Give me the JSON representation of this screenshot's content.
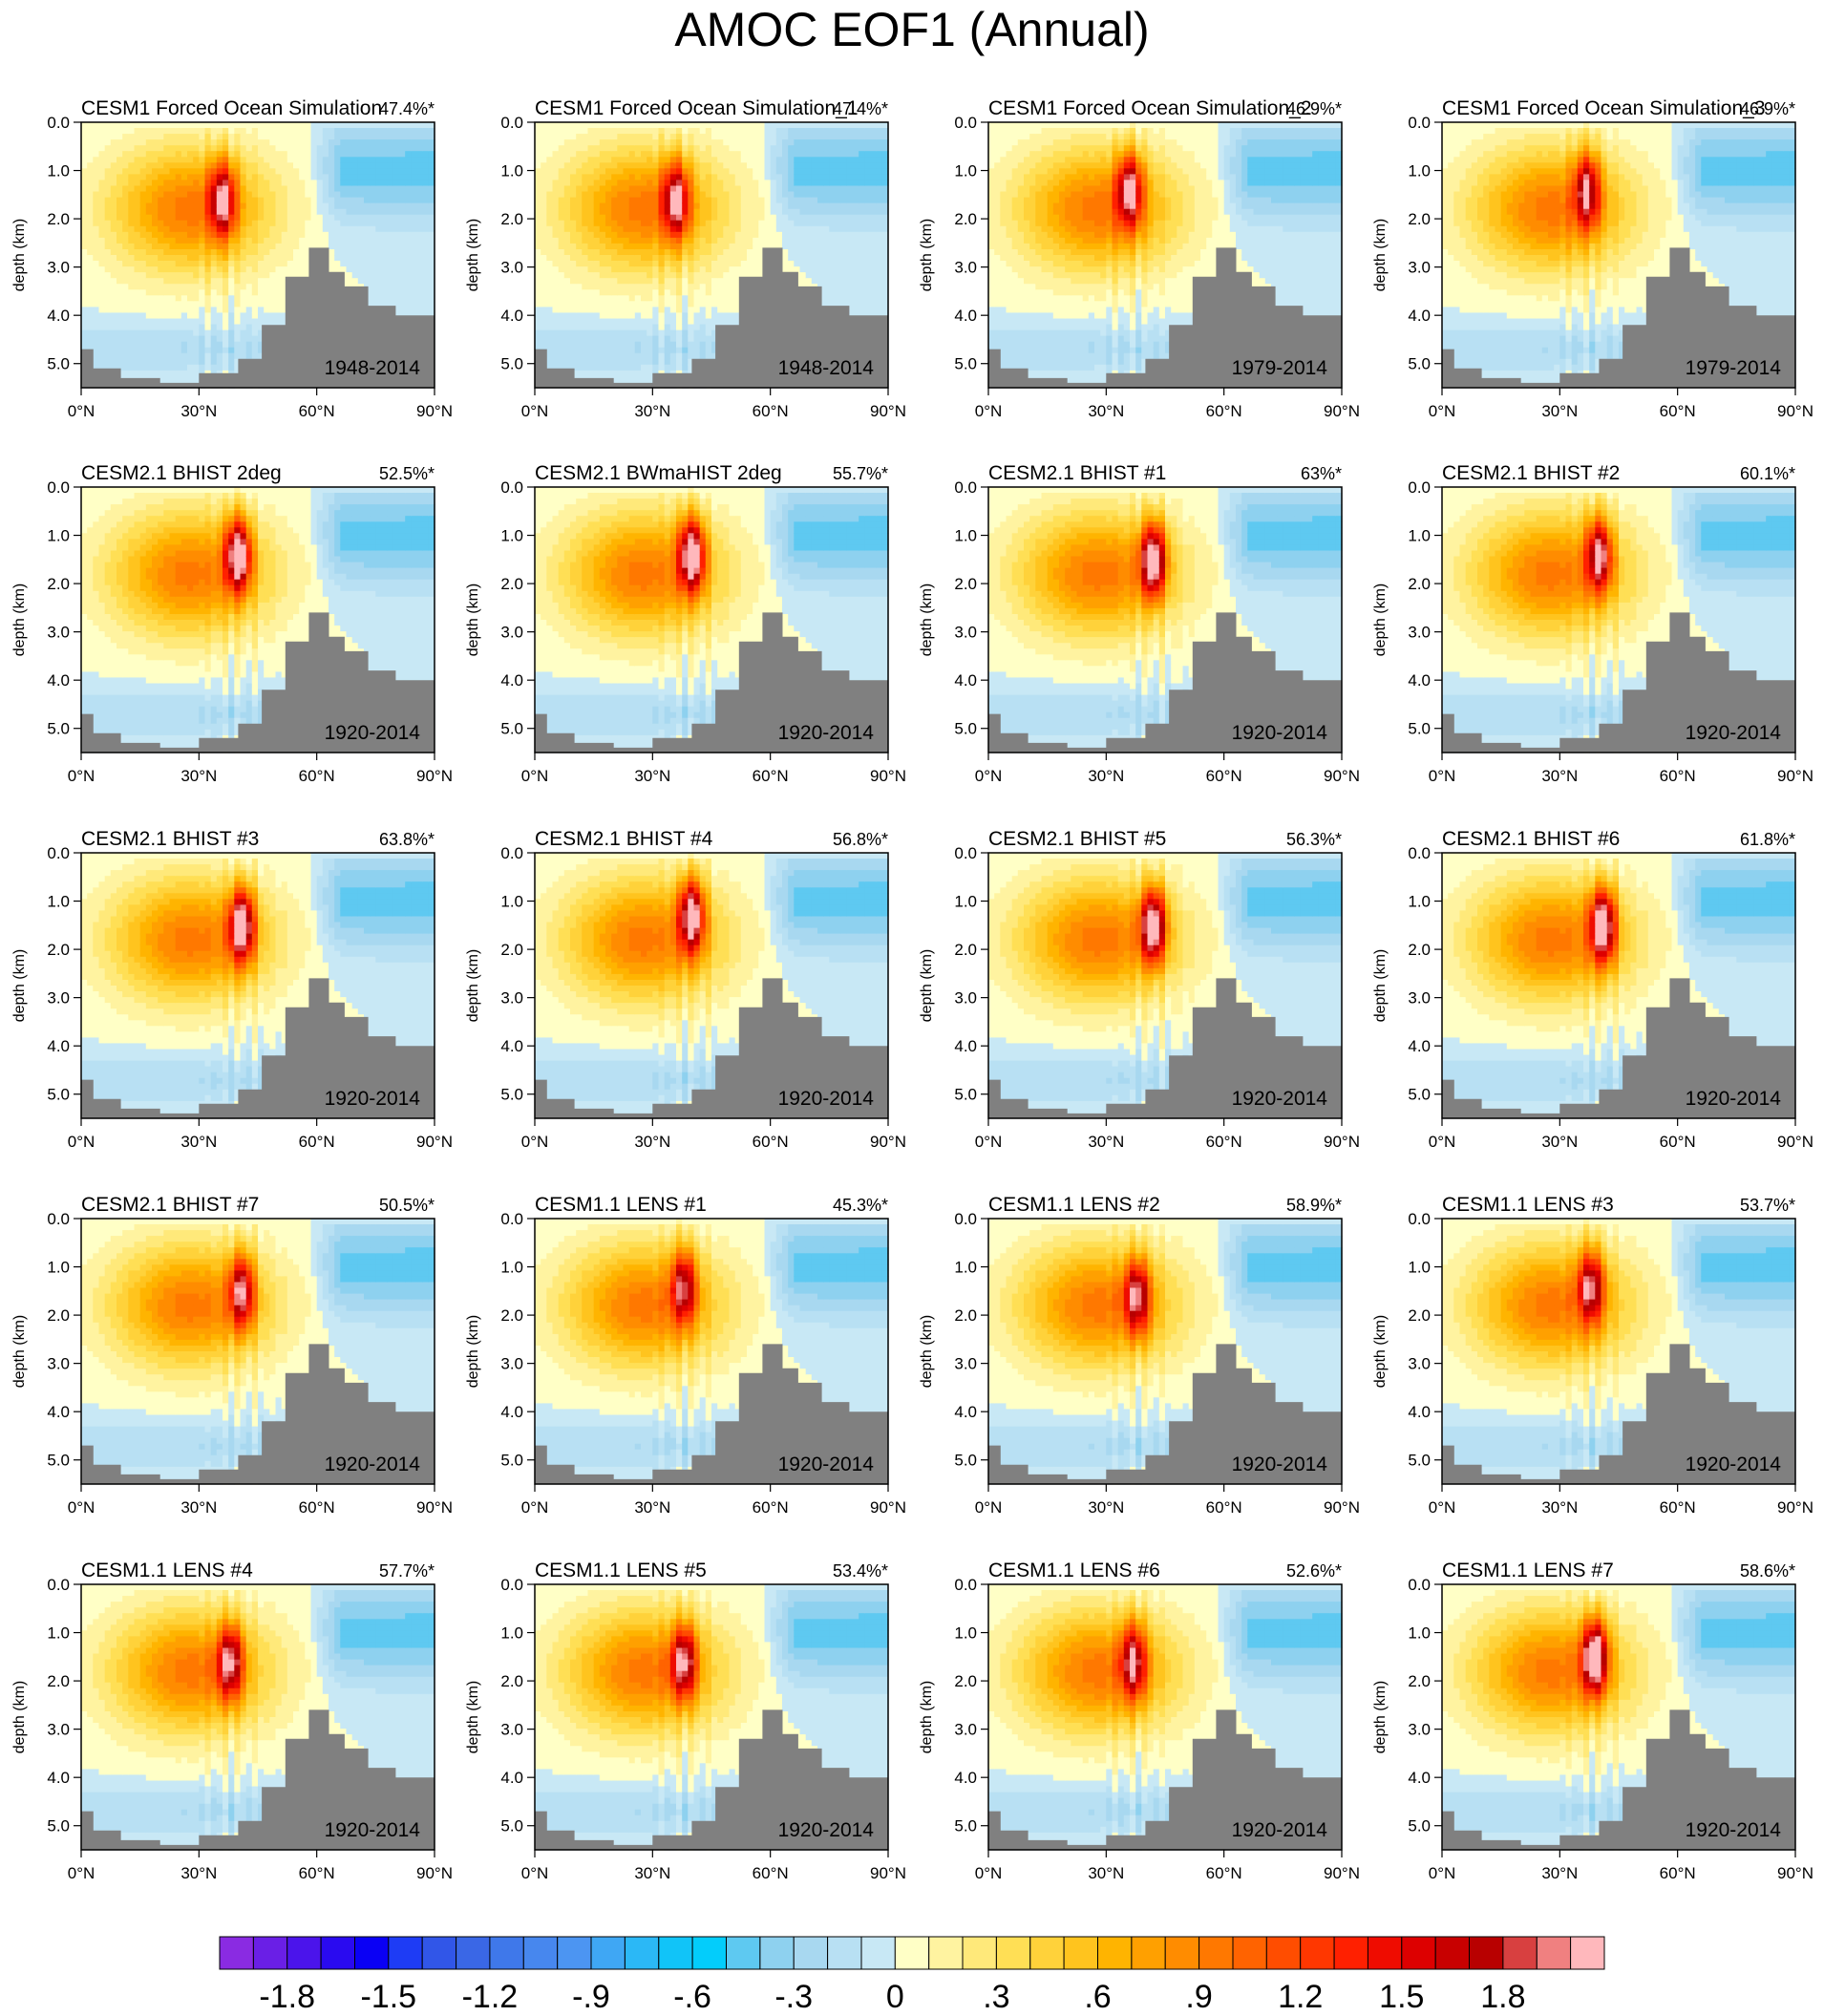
{
  "title": "AMOC EOF1 (Annual)",
  "axes": {
    "ylabel": "depth (km)",
    "y_ticks": [
      "0.0",
      "1.0",
      "2.0",
      "3.0",
      "4.0",
      "5.0"
    ],
    "x_ticks": [
      "0°N",
      "30°N",
      "60°N",
      "90°N"
    ],
    "xlim": [
      0,
      90
    ],
    "ylim": [
      5.5,
      0
    ]
  },
  "chart_data": {
    "type": "heatmap",
    "title": "AMOC EOF1 (Annual)",
    "ylabel": "depth (km)",
    "panels": [
      {
        "name": "CESM1 Forced Ocean Simulation",
        "pct": "47.4%*",
        "period": "1948-2014",
        "max": 1.45,
        "cx": 36,
        "cz": 1.6
      },
      {
        "name": "CESM1 Forced Ocean Simulation_1",
        "pct": "47.4%*",
        "period": "1948-2014",
        "max": 1.45,
        "cx": 36,
        "cz": 1.6
      },
      {
        "name": "CESM1 Forced Ocean Simulation_2",
        "pct": "46.9%*",
        "period": "1979-2014",
        "max": 1.5,
        "cx": 36,
        "cz": 1.4
      },
      {
        "name": "CESM1 Forced Ocean Simulation_3",
        "pct": "46.9%*",
        "period": "1979-2014",
        "max": 1.45,
        "cx": 37,
        "cz": 1.4
      },
      {
        "name": "CESM2.1 BHIST 2deg",
        "pct": "52.5%*",
        "period": "1920-2014",
        "max": 1.85,
        "cx": 40,
        "cz": 1.4
      },
      {
        "name": "CESM2.1 BWmaHIST 2deg",
        "pct": "55.7%*",
        "period": "1920-2014",
        "max": 1.9,
        "cx": 40,
        "cz": 1.4
      },
      {
        "name": "CESM2.1 BHIST #1",
        "pct": "63%*",
        "period": "1920-2014",
        "max": 1.9,
        "cx": 42,
        "cz": 1.5
      },
      {
        "name": "CESM2.1 BHIST #2",
        "pct": "60.1%*",
        "period": "1920-2014",
        "max": 1.6,
        "cx": 40,
        "cz": 1.4
      },
      {
        "name": "CESM2.1 BHIST #3",
        "pct": "63.8%*",
        "period": "1920-2014",
        "max": 1.85,
        "cx": 41,
        "cz": 1.5
      },
      {
        "name": "CESM2.1 BHIST #4",
        "pct": "56.8%*",
        "period": "1920-2014",
        "max": 1.8,
        "cx": 40,
        "cz": 1.3
      },
      {
        "name": "CESM2.1 BHIST #5",
        "pct": "56.3%*",
        "period": "1920-2014",
        "max": 1.9,
        "cx": 42,
        "cz": 1.5
      },
      {
        "name": "CESM2.1 BHIST #6",
        "pct": "61.8%*",
        "period": "1920-2014",
        "max": 1.9,
        "cx": 41,
        "cz": 1.5
      },
      {
        "name": "CESM2.1 BHIST #7",
        "pct": "50.5%*",
        "period": "1920-2014",
        "max": 1.5,
        "cx": 41,
        "cz": 1.5
      },
      {
        "name": "CESM1.1 LENS #1",
        "pct": "45.3%*",
        "period": "1920-2014",
        "max": 1.35,
        "cx": 38,
        "cz": 1.4
      },
      {
        "name": "CESM1.1 LENS #2",
        "pct": "58.9%*",
        "period": "1920-2014",
        "max": 1.4,
        "cx": 38,
        "cz": 1.6
      },
      {
        "name": "CESM1.1 LENS #3",
        "pct": "53.7%*",
        "period": "1920-2014",
        "max": 1.45,
        "cx": 38,
        "cz": 1.4
      },
      {
        "name": "CESM1.1 LENS #4",
        "pct": "57.7%*",
        "period": "1920-2014",
        "max": 1.45,
        "cx": 38,
        "cz": 1.6
      },
      {
        "name": "CESM1.1 LENS #5",
        "pct": "53.4%*",
        "period": "1920-2014",
        "max": 1.45,
        "cx": 38,
        "cz": 1.6
      },
      {
        "name": "CESM1.1 LENS #6",
        "pct": "52.6%*",
        "period": "1920-2014",
        "max": 1.4,
        "cx": 37,
        "cz": 1.6
      },
      {
        "name": "CESM1.1 LENS #7",
        "pct": "58.6%*",
        "period": "1920-2014",
        "max": 1.9,
        "cx": 39,
        "cz": 1.5
      }
    ],
    "colorbar": {
      "levels": [
        -2.0,
        -1.9,
        -1.8,
        -1.7,
        -1.6,
        -1.5,
        -1.4,
        -1.3,
        -1.2,
        -1.1,
        -1.0,
        -0.9,
        -0.8,
        -0.7,
        -0.6,
        -0.5,
        -0.4,
        -0.3,
        -0.2,
        -0.1,
        0.0,
        0.1,
        0.2,
        0.3,
        0.4,
        0.5,
        0.6,
        0.7,
        0.8,
        0.9,
        1.0,
        1.1,
        1.2,
        1.3,
        1.4,
        1.5,
        1.6,
        1.7,
        1.8,
        1.9,
        2.0
      ],
      "labels": [
        "-1.8",
        "-1.5",
        "-1.2",
        "-.9",
        "-.6",
        "-.3",
        "0",
        ".3",
        ".6",
        ".9",
        "1.2",
        "1.5",
        "1.8"
      ],
      "colors": [
        "#8a2be2",
        "#6a1fe6",
        "#4b14eb",
        "#2a0af0",
        "#0a00f5",
        "#1e3cf5",
        "#3156e8",
        "#3a67e6",
        "#3f78ea",
        "#4787ee",
        "#4c95f2",
        "#3fa7f4",
        "#2bb8f6",
        "#11c4f8",
        "#03cdfb",
        "#5ec9f1",
        "#8ed1ef",
        "#a8d8f0",
        "#b8e0f3",
        "#c8e8f5",
        "#ffffc6",
        "#fff3a0",
        "#ffe97a",
        "#ffdf55",
        "#ffd23a",
        "#ffc41e",
        "#ffb400",
        "#ffa000",
        "#ff8c00",
        "#ff7800",
        "#ff6300",
        "#ff4d00",
        "#ff3700",
        "#ff2000",
        "#ef0c00",
        "#dd0000",
        "#c80000",
        "#b80000",
        "#d84040",
        "#f08080",
        "#ffb8bc"
      ]
    }
  }
}
